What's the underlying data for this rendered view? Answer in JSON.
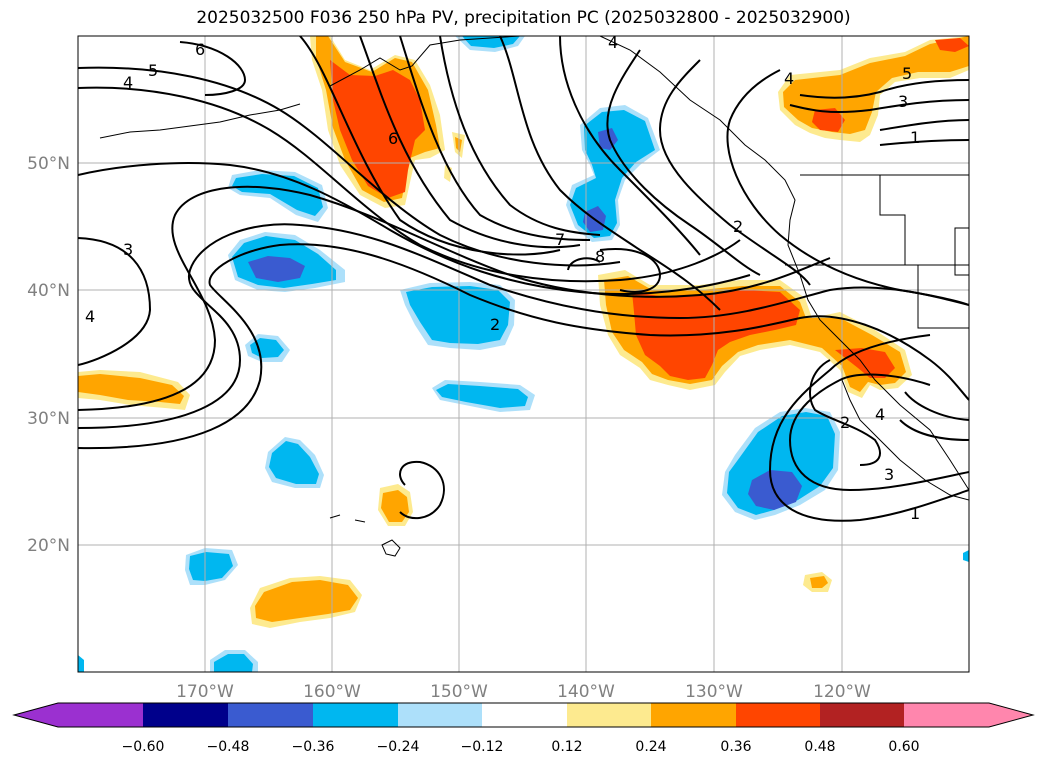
{
  "title": "2025032500 F036 250 hPa PV, precipitation PC (2025032800 - 2025032900)",
  "map": {
    "lon_labels": [
      "170°W",
      "160°W",
      "150°W",
      "140°W",
      "130°W",
      "120°W"
    ],
    "lat_labels": [
      "50°N",
      "40°N",
      "30°N",
      "20°N"
    ],
    "grid": true,
    "features": [
      "coastlines",
      "state-borders"
    ]
  },
  "pv_contour_labels": [
    "6",
    "5",
    "4",
    "4",
    "6",
    "3",
    "4",
    "7",
    "8",
    "2",
    "2",
    "1",
    "2",
    "4",
    "5",
    "3",
    "3",
    "1",
    "4"
  ],
  "colorbar": {
    "ticks": [
      "−0.60",
      "−0.48",
      "−0.36",
      "−0.24",
      "−0.12",
      "0.12",
      "0.24",
      "0.36",
      "0.48",
      "0.60"
    ],
    "colors": [
      "#9b30d0",
      "#00008b",
      "#3a5bd0",
      "#00b7f0",
      "#ade0fa",
      "#ffffff",
      "#fdea8f",
      "#ffa500",
      "#ff4500",
      "#b22222",
      "#ff86ad"
    ],
    "extend": "both"
  }
}
